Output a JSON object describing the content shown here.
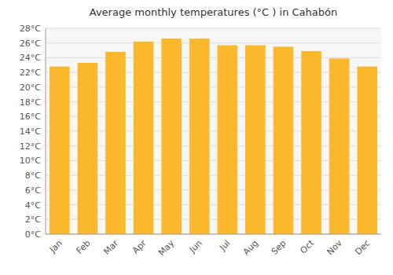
{
  "chart_data": {
    "type": "bar",
    "title": "Average monthly temperatures (°C ) in Cahabón",
    "categories": [
      "Jan",
      "Feb",
      "Mar",
      "Apr",
      "May",
      "Jun",
      "Jul",
      "Aug",
      "Sep",
      "Oct",
      "Nov",
      "Dec"
    ],
    "values": [
      22.8,
      23.3,
      24.8,
      26.2,
      26.6,
      26.6,
      25.7,
      25.7,
      25.5,
      24.9,
      23.9,
      22.8
    ],
    "color": "#FDB92E",
    "ylim": [
      0,
      28
    ],
    "yticks": [
      {
        "value": 0,
        "label": "0°C"
      },
      {
        "value": 2,
        "label": "2°C"
      },
      {
        "value": 4,
        "label": "4°C"
      },
      {
        "value": 6,
        "label": "6°C"
      },
      {
        "value": 8,
        "label": "8°C"
      },
      {
        "value": 10,
        "label": "10°C"
      },
      {
        "value": 12,
        "label": "12°C"
      },
      {
        "value": 14,
        "label": "14°C"
      },
      {
        "value": 16,
        "label": "16°C"
      },
      {
        "value": 18,
        "label": "18°C"
      },
      {
        "value": 20,
        "label": "20°C"
      },
      {
        "value": 22,
        "label": "22°C"
      },
      {
        "value": 24,
        "label": "24°C"
      },
      {
        "value": 26,
        "label": "26°C"
      },
      {
        "value": 28,
        "label": "28°C"
      }
    ],
    "grid": true
  }
}
